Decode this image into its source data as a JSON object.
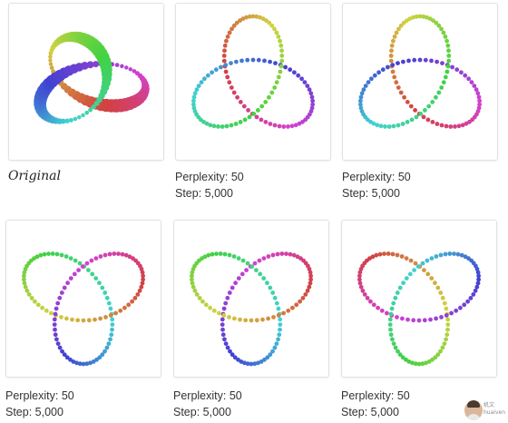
{
  "panels": [
    {
      "caption": "Original",
      "lines": []
    },
    {
      "caption": "",
      "lines": [
        "Perplexity: 50",
        "Step: 5,000"
      ]
    },
    {
      "caption": "",
      "lines": [
        "Perplexity: 50",
        "Step: 5,000"
      ]
    },
    {
      "caption": "",
      "lines": [
        "Perplexity: 50",
        "Step: 5,000"
      ]
    },
    {
      "caption": "",
      "lines": [
        "Perplexity: 50",
        "Step: 5,000"
      ]
    },
    {
      "caption": "",
      "lines": [
        "Perplexity: 50",
        "Step: 5,000"
      ]
    }
  ],
  "watermark": {
    "line1": "机文",
    "line2": "huaiven"
  },
  "colors": {
    "card_border": "#e2e2e2",
    "text": "#333333",
    "palette": [
      "#7c3fc9",
      "#b04fd6",
      "#c04060",
      "#c86a3a",
      "#b9c43a",
      "#6dcc45",
      "#3cc48a",
      "#36b7c7",
      "#3a8fd4",
      "#4a55c9"
    ]
  }
}
